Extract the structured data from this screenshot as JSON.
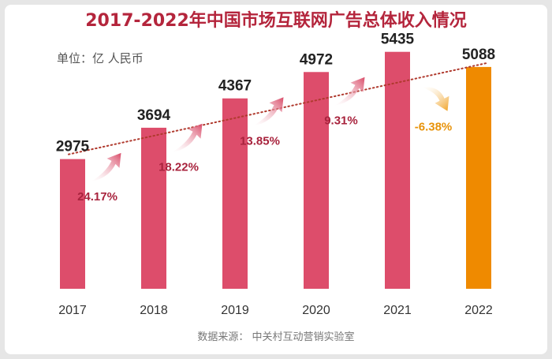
{
  "header": {
    "title": "2017-2022年中国市场互联网广告总体收入情况",
    "unit": "单位：亿 人民币"
  },
  "footer": {
    "source": "数据来源：  中关村互动营销实验室"
  },
  "colors": {
    "title": "#b4253c",
    "bar_main": "#dd4d6b",
    "bar_highlight": "#ef8a00",
    "growth_up": "#a8233d",
    "growth_down": "#e8930a",
    "arrow_up": "#d94b68",
    "arrow_down": "#f0a020",
    "trendline": "#b03a2e"
  },
  "chart_data": {
    "type": "bar",
    "title": "2017-2022年中国市场互联网广告总体收入情况",
    "ylabel": "单位：亿 人民币",
    "categories": [
      "2017",
      "2018",
      "2019",
      "2020",
      "2021",
      "2022"
    ],
    "values": [
      2975,
      3694,
      4367,
      4972,
      5435,
      5088
    ],
    "ylim": [
      0,
      5900
    ],
    "highlight_index": 5,
    "growth_rates": [
      "24.17%",
      "18.22%",
      "13.85%",
      "9.31%",
      "-6.38%"
    ],
    "trendline": "dotted",
    "grid": false
  }
}
